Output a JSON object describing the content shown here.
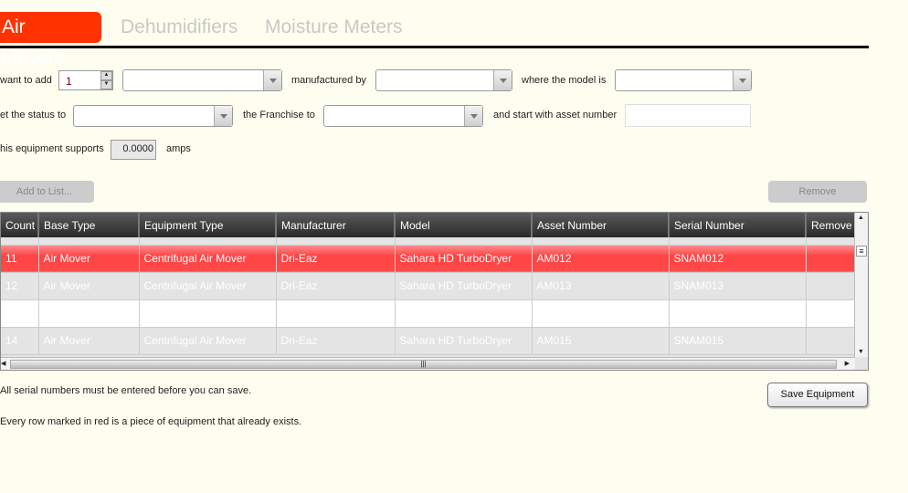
{
  "tabs": [
    {
      "label": "Air Movers",
      "active": true
    },
    {
      "label": "Dehumidifiers"
    },
    {
      "label": "Moisture Meters"
    }
  ],
  "form": {
    "want_to_add": "want to add",
    "quantity": "1",
    "manufactured_by": "manufactured by",
    "where_model": "where the model is",
    "set_status": "et the status to",
    "franchise": "the Franchise to",
    "start_asset": "and start with asset number",
    "supports": "his equipment supports",
    "amps_value": "0.0000",
    "amps": "amps"
  },
  "buttons": {
    "add_to_list": "Add to List...",
    "remove": "Remove",
    "save": "Save Equipment"
  },
  "table": {
    "columns": [
      "Count",
      "Base Type",
      "Equipment Type",
      "Manufacturer",
      "Model",
      "Asset Number",
      "Serial Number",
      "Remove"
    ],
    "rows": [
      {
        "style": "red",
        "cells": [
          "11",
          "Air Mover",
          "Centrifugal Air Mover",
          "Dri-Eaz",
          "Sahara HD TurboDryer",
          "AM012",
          "SNAM012",
          ""
        ]
      },
      {
        "style": "gray",
        "cells": [
          "12",
          "Air Mover",
          "Centrifugal Air Mover",
          "Dri-Eaz",
          "Sahara HD TurboDryer",
          "AM013",
          "SNAM013",
          ""
        ]
      },
      {
        "style": "white",
        "cells": [
          "",
          "",
          "",
          "",
          "",
          "",
          "",
          ""
        ]
      },
      {
        "style": "gray",
        "cells": [
          "14",
          "Air Mover",
          "Centrifugal Air Mover",
          "Dri-Eaz",
          "Sahara HD TurboDryer",
          "AM015",
          "SNAM015",
          ""
        ]
      }
    ]
  },
  "notes": {
    "serial": "All serial numbers must be entered before you can save.",
    "red": "Every row marked in red is a piece of equipment that already exists."
  },
  "colors": {
    "accent": "#ff3300",
    "existing_row": "#ff4a4a"
  }
}
